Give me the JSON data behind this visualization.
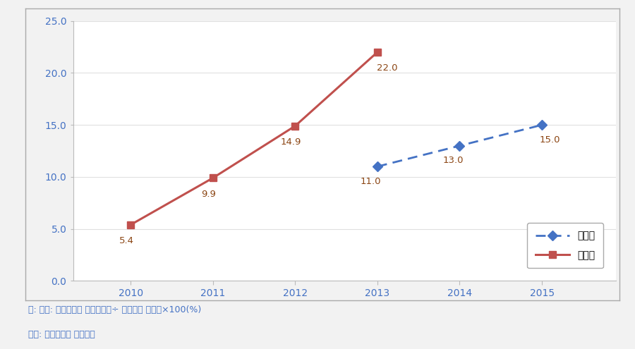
{
  "target_years": [
    2013,
    2014,
    2015
  ],
  "target_values": [
    11.0,
    13.0,
    15.0
  ],
  "actual_years": [
    2010,
    2011,
    2012,
    2013
  ],
  "actual_values": [
    5.4,
    9.9,
    14.9,
    22.0
  ],
  "target_color": "#4472C4",
  "actual_color": "#C0504D",
  "ylim": [
    0,
    25.0
  ],
  "yticks": [
    0.0,
    5.0,
    10.0,
    15.0,
    20.0,
    25.0
  ],
  "xlim_left": 2009.3,
  "xlim_right": 2015.9,
  "xticks": [
    2010,
    2011,
    2012,
    2013,
    2014,
    2015
  ],
  "legend_target": "목표치",
  "legend_actual": "실측치",
  "note1": "주: 산식: 드림스타트 수혜아동수÷ 취약계층 아동수×100(%)",
  "note2": "자료: 보건복지부 내부자료",
  "tick_color": "#4472C4",
  "label_color": "#8B4513",
  "bg_color": "#f2f2f2",
  "plot_bg_color": "#ffffff",
  "border_color": "#aaaaaa",
  "note_color": "#4472C4"
}
